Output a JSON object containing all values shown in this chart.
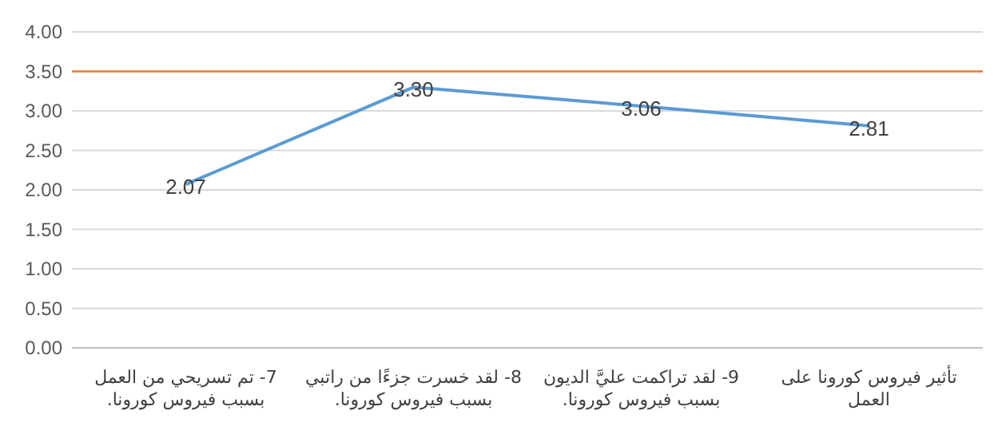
{
  "chart_data": {
    "type": "line",
    "categories": [
      "7- تم تسريحي من العمل بسبب فيروس كورونا.",
      "8- لقد خسرت جزءًا من راتبي بسبب فيروس كورونا.",
      "9- لقد تراكمت عليَّ الديون بسبب فيروس كورونا.",
      "تأثير فيروس كورونا على العمل"
    ],
    "values": [
      2.07,
      3.3,
      3.06,
      2.81
    ],
    "value_labels": [
      "2.07",
      "3.30",
      "3.06",
      "2.81"
    ],
    "color": "#5b9bd5",
    "marker": "none",
    "line_style": "solid",
    "ylim": [
      0,
      4
    ],
    "yticks": [
      {
        "value": 0,
        "label": "0.00"
      },
      {
        "value": 0.5,
        "label": "0.50"
      },
      {
        "value": 1,
        "label": "1.00"
      },
      {
        "value": 1.5,
        "label": "1.50"
      },
      {
        "value": 2,
        "label": "2.00"
      },
      {
        "value": 2.5,
        "label": "2.50"
      },
      {
        "value": 3,
        "label": "3.00"
      },
      {
        "value": 3.5,
        "label": "3.50"
      },
      {
        "value": 4,
        "label": "4.00"
      }
    ],
    "ref_lines": [
      {
        "axis": "y",
        "value": 3.5,
        "color": "#ed7d31"
      }
    ],
    "grid": "y"
  }
}
